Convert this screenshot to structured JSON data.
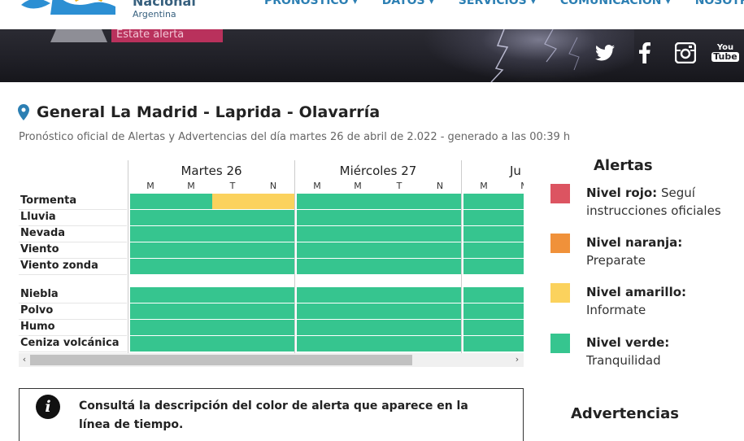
{
  "header": {
    "logo_line1": "Nacional",
    "logo_line2": "Argentina",
    "nav": [
      {
        "label": "PRONÓSTICO"
      },
      {
        "label": "DATOS"
      },
      {
        "label": "SERVICIOS"
      },
      {
        "label": "COMUNICACIÓN"
      },
      {
        "label": "NOSOTR"
      }
    ]
  },
  "banner": {
    "alert_pill": "Estate alerta",
    "social": [
      "twitter-icon",
      "facebook-icon",
      "instagram-icon",
      "youtube-icon"
    ],
    "youtube_label_top": "You",
    "youtube_label_bottom": "Tube"
  },
  "location": {
    "title": "General La Madrid - Laprida - Olavarría",
    "subtitle": "Pronóstico oficial de Alertas y Advertencias del día martes 26 de abril de 2.022 - generado a las 00:39 h"
  },
  "forecast": {
    "days": [
      {
        "label": "Martes 26",
        "slots": [
          "M",
          "M",
          "T",
          "N"
        ]
      },
      {
        "label": "Miércoles 27",
        "slots": [
          "M",
          "M",
          "T",
          "N"
        ]
      },
      {
        "label": "Ju",
        "slots": [
          "M",
          "M"
        ]
      }
    ],
    "rows_group1": [
      {
        "label": "Tormenta",
        "levels": [
          "verde",
          "verde",
          "amarillo",
          "amarillo",
          "verde",
          "verde",
          "verde",
          "verde",
          "verde",
          "verde"
        ]
      },
      {
        "label": "Lluvia",
        "levels": [
          "verde",
          "verde",
          "verde",
          "verde",
          "verde",
          "verde",
          "verde",
          "verde",
          "verde",
          "verde"
        ]
      },
      {
        "label": "Nevada",
        "levels": [
          "verde",
          "verde",
          "verde",
          "verde",
          "verde",
          "verde",
          "verde",
          "verde",
          "verde",
          "verde"
        ]
      },
      {
        "label": "Viento",
        "levels": [
          "verde",
          "verde",
          "verde",
          "verde",
          "verde",
          "verde",
          "verde",
          "verde",
          "verde",
          "verde"
        ]
      },
      {
        "label": "Viento zonda",
        "levels": [
          "verde",
          "verde",
          "verde",
          "verde",
          "verde",
          "verde",
          "verde",
          "verde",
          "verde",
          "verde"
        ]
      }
    ],
    "rows_group2": [
      {
        "label": "Niebla",
        "levels": [
          "verde",
          "verde",
          "verde",
          "verde",
          "verde",
          "verde",
          "verde",
          "verde",
          "verde",
          "verde"
        ]
      },
      {
        "label": "Polvo",
        "levels": [
          "verde",
          "verde",
          "verde",
          "verde",
          "verde",
          "verde",
          "verde",
          "verde",
          "verde",
          "verde"
        ]
      },
      {
        "label": "Humo",
        "levels": [
          "verde",
          "verde",
          "verde",
          "verde",
          "verde",
          "verde",
          "verde",
          "verde",
          "verde",
          "verde"
        ]
      },
      {
        "label": "Ceniza volcánica",
        "levels": [
          "verde",
          "verde",
          "verde",
          "verde",
          "verde",
          "verde",
          "verde",
          "verde",
          "verde",
          "verde"
        ]
      }
    ]
  },
  "colors": {
    "rojo": "#dc5461",
    "naranja": "#f0913a",
    "amarillo": "#fbd25d",
    "verde": "#36c58f",
    "nav_blue": "#2c7fb3",
    "pin_blue": "#2c7fb3"
  },
  "legend": {
    "title": "Alertas",
    "items": [
      {
        "level": "Nivel rojo:",
        "text": " Seguí instrucciones oficiales",
        "color_key": "rojo"
      },
      {
        "level": "Nivel naranja:",
        "text": "Preparate",
        "color_key": "naranja"
      },
      {
        "level": "Nivel amarillo:",
        "text": "Informate",
        "color_key": "amarillo"
      },
      {
        "level": "Nivel verde:",
        "text": "Tranquilidad",
        "color_key": "verde"
      }
    ]
  },
  "info": {
    "text": "Consultá la descripción del color de alerta que aparece en la línea de tiempo."
  },
  "advertencias_title": "Advertencias"
}
